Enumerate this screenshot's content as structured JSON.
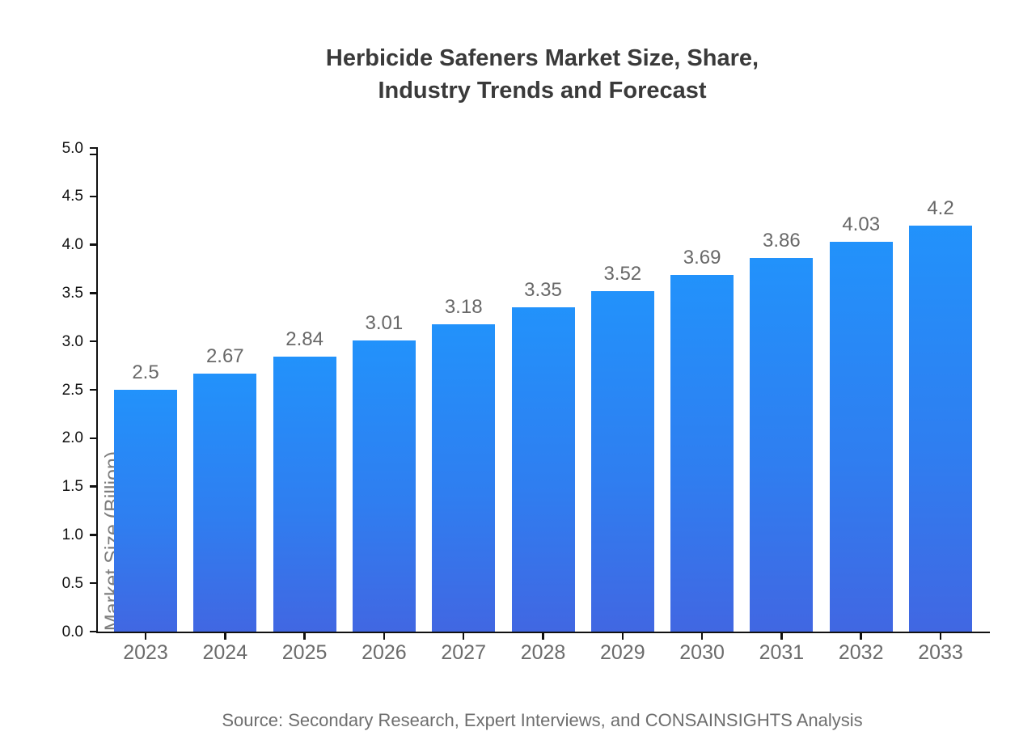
{
  "header": {
    "title_line1": "Herbicide Safeners Market Size, Share,",
    "title_line2": "Industry Trends and Forecast"
  },
  "footer": {
    "source": "Source: Secondary Research, Expert Interviews, and CONSAINSIGHTS Analysis"
  },
  "chart_data": {
    "type": "bar",
    "title": "Herbicide Safeners Market Size, Share, Industry Trends and Forecast",
    "categories": [
      "2023",
      "2024",
      "2025",
      "2026",
      "2027",
      "2028",
      "2029",
      "2030",
      "2031",
      "2032",
      "2033"
    ],
    "values": [
      2.5,
      2.67,
      2.84,
      3.01,
      3.18,
      3.35,
      3.52,
      3.69,
      3.86,
      4.03,
      4.2
    ],
    "value_labels": [
      "2.5",
      "2.67",
      "2.84",
      "3.01",
      "3.18",
      "3.35",
      "3.52",
      "3.69",
      "3.86",
      "4.03",
      "4.2"
    ],
    "xlabel": "",
    "ylabel": "Market Size (Billion)",
    "ylim": [
      0,
      5
    ],
    "yticks": [
      0,
      0.5,
      1.0,
      1.5,
      2.0,
      2.5,
      3.0,
      3.5,
      4.0,
      4.5,
      5.0
    ],
    "ytick_labels": [
      "0.0",
      "0.5",
      "1.0",
      "1.5",
      "2.0",
      "2.5",
      "3.0",
      "3.5",
      "4.0",
      "4.5",
      "5.0"
    ],
    "grid": false,
    "legend": "none",
    "colors": {
      "bar_gradient_top": "#2292fb",
      "bar_gradient_bottom": "#4167e2",
      "axis": "#111111",
      "title_text": "#3a3a3a",
      "value_label_text": "#686868",
      "x_tick_label_text": "#6b6b6b",
      "y_axis_title_text": "#7d7d7d",
      "source_text": "#6e6e6e",
      "background": "#ffffff"
    }
  }
}
